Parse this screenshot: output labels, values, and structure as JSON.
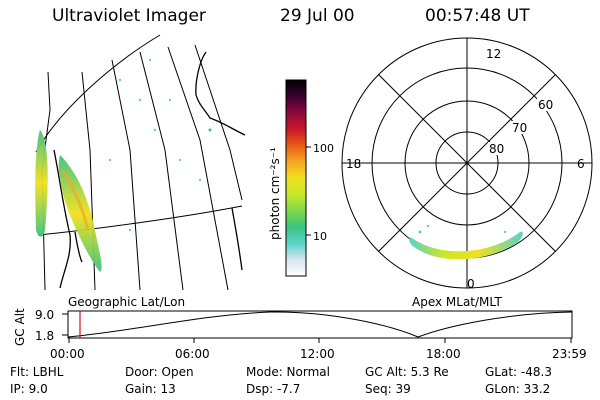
{
  "header": {
    "instrument": "Ultraviolet Imager",
    "date": "29 Jul 00",
    "time": "00:57:48 UT"
  },
  "map_label": "Geographic Lat/Lon",
  "polar": {
    "label": "Apex MLat/MLT",
    "mlt_labels": {
      "top": "12",
      "left": "18",
      "right": "6",
      "bottom": "0"
    },
    "lat_labels": [
      "60",
      "70",
      "80"
    ]
  },
  "colorbar": {
    "unit_label": "photon cm⁻²s⁻¹",
    "ticks": [
      "100",
      "10"
    ],
    "colors": [
      "#ffffff",
      "#d6e6f0",
      "#5ad2c8",
      "#3cc37e",
      "#7fd84a",
      "#c8e828",
      "#f2e01c",
      "#f5a623",
      "#e85a14",
      "#c81828",
      "#8c0a3c",
      "#3a0030",
      "#000000"
    ]
  },
  "altitude_plot": {
    "ylabel": "GC Alt",
    "y_ticks": [
      "9.0",
      "1.8"
    ],
    "x_ticks": [
      "00:00",
      "06:00",
      "12:00",
      "18:00",
      "23:59"
    ],
    "marker_color": "#c8141e"
  },
  "info": {
    "flt": "Flt: LBHL",
    "ip": "IP:  9.0",
    "door": "Door: Open",
    "gain": "Gain: 13",
    "mode": "Mode: Normal",
    "dsp": "Dsp:    -7.7",
    "gcalt": "GC Alt: 5.3 Re",
    "seq": "Seq: 39",
    "glat": "GLat:  -48.3",
    "glon": "GLon:  33.2"
  }
}
